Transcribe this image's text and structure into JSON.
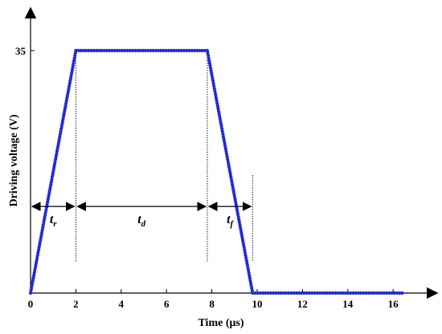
{
  "chart_data": {
    "type": "line",
    "title": "",
    "xlabel": "Time (μs)",
    "ylabel": "Driving voltage (V)",
    "x_ticks": [
      "0",
      "2",
      "4",
      "6",
      "8",
      "10",
      "12",
      "14",
      "16"
    ],
    "y_ticks": [
      "35"
    ],
    "xlim": [
      0,
      16.5
    ],
    "ylim": [
      0,
      35
    ],
    "grid": false,
    "legend": "none",
    "series": [
      {
        "name": "",
        "color": "#1f2ad6",
        "marker": "dot",
        "x": [
          0,
          2,
          7.8,
          9.8,
          16.4
        ],
        "y": [
          0,
          35,
          35,
          0,
          0
        ]
      }
    ],
    "annotations": [
      {
        "label": "t",
        "sub": "r",
        "x_start": 0,
        "x_end": 2,
        "y": 12.5
      },
      {
        "label": "t",
        "sub": "d",
        "x_start": 2,
        "x_end": 7.8,
        "y": 12.5
      },
      {
        "label": "t",
        "sub": "f",
        "x_start": 7.8,
        "x_end": 9.8,
        "y": 12.5
      }
    ],
    "reference_lines_x": [
      2,
      7.8,
      9.8
    ]
  }
}
